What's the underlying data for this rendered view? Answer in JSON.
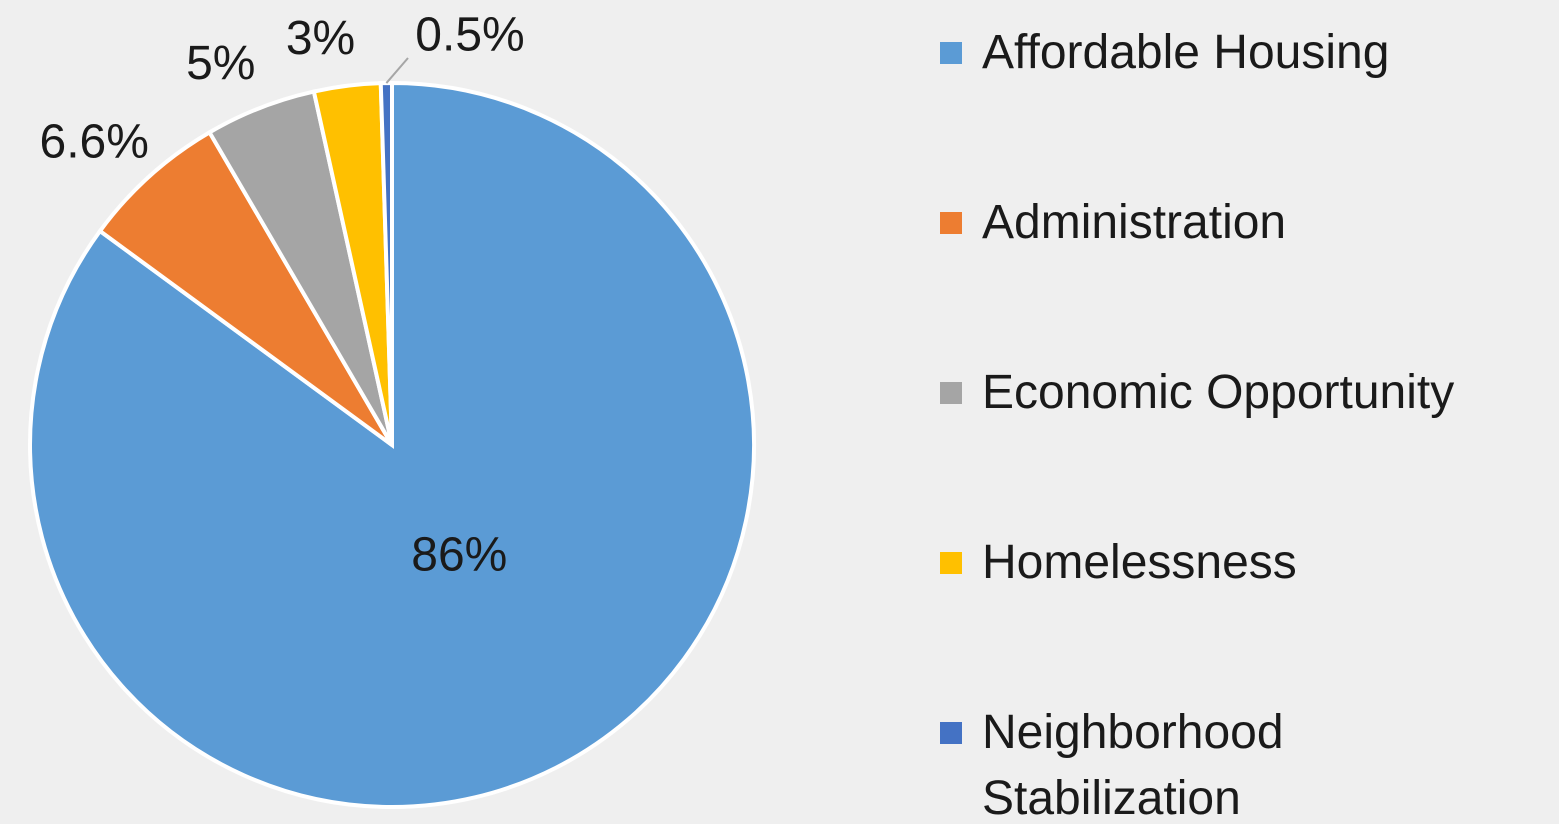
{
  "chart_data": {
    "type": "pie",
    "categories": [
      "Affordable Housing",
      "Administration",
      "Economic Opportunity",
      "Homelessness",
      "Neighborhood Stabilization"
    ],
    "values": [
      86,
      6.6,
      5,
      3,
      0.5
    ],
    "value_labels": [
      "86%",
      "6.6%",
      "5%",
      "3%",
      "0.5%"
    ],
    "colors": [
      "#5b9bd5",
      "#ed7d31",
      "#a5a5a5",
      "#ffc000",
      "#4472c4"
    ],
    "legend": "right"
  }
}
